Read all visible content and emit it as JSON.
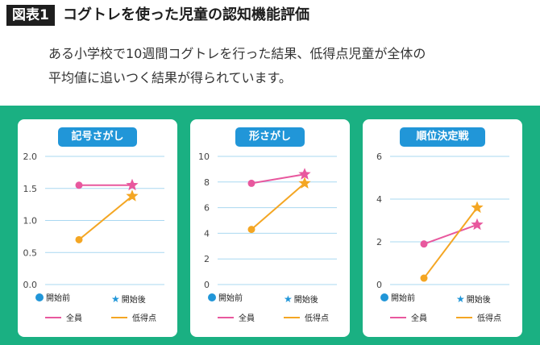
{
  "header": {
    "tag": "図表1",
    "title": "コグトレを使った児童の認知機能評価"
  },
  "subtitle": {
    "line1": "ある小学校で10週間コグトレを行った結果、低得点児童が全体の",
    "line2": "平均値に追いつく結果が得られています。"
  },
  "colors": {
    "all": "#e8589e",
    "low": "#f4a623",
    "accent": "#2196d8",
    "background": "#1ab082",
    "grid": "#a9d8f1"
  },
  "legend": {
    "start": "開始前",
    "end": "開始後",
    "all": "全員",
    "low": "低得点"
  },
  "chart_data": [
    {
      "type": "line",
      "title": "記号さがし",
      "x": [
        "開始前",
        "開始後"
      ],
      "ylim": [
        0,
        2.0
      ],
      "ticks": [
        "0.0",
        "0.5",
        "1.0",
        "1.5",
        "2.0"
      ],
      "tick_values": [
        0,
        0.5,
        1.0,
        1.5,
        2.0
      ],
      "grid": true,
      "series": [
        {
          "name": "全員",
          "values": [
            1.55,
            1.55
          ]
        },
        {
          "name": "低得点",
          "values": [
            0.7,
            1.38
          ]
        }
      ]
    },
    {
      "type": "line",
      "title": "形さがし",
      "x": [
        "開始前",
        "開始後"
      ],
      "ylim": [
        0,
        10
      ],
      "ticks": [
        "0",
        "2",
        "4",
        "6",
        "8",
        "10"
      ],
      "tick_values": [
        0,
        2,
        4,
        6,
        8,
        10
      ],
      "grid": true,
      "series": [
        {
          "name": "全員",
          "values": [
            7.9,
            8.6
          ]
        },
        {
          "name": "低得点",
          "values": [
            4.3,
            7.9
          ]
        }
      ]
    },
    {
      "type": "line",
      "title": "順位決定戦",
      "x": [
        "開始前",
        "開始後"
      ],
      "ylim": [
        0,
        6
      ],
      "ticks": [
        "0",
        "2",
        "4",
        "6"
      ],
      "tick_values": [
        0,
        2,
        4,
        6
      ],
      "grid": true,
      "series": [
        {
          "name": "全員",
          "values": [
            1.9,
            2.8
          ]
        },
        {
          "name": "低得点",
          "values": [
            0.3,
            3.6
          ]
        }
      ]
    }
  ]
}
